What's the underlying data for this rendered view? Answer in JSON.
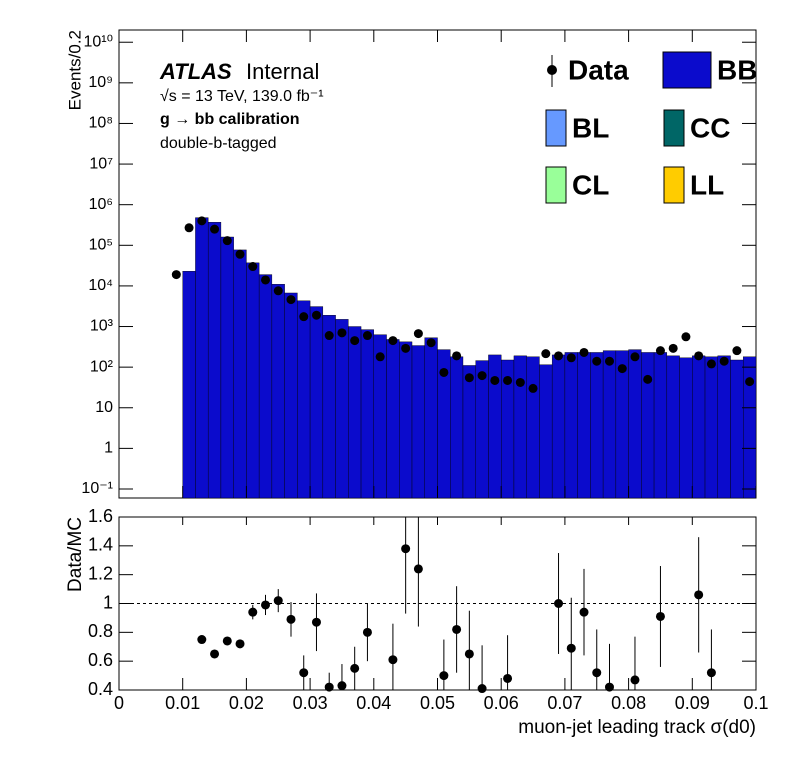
{
  "chart_data": [
    {
      "type": "histogram",
      "title": "ATLAS",
      "subtitle": "Internal",
      "annotations": [
        "√s = 13 TeV, 139.0 fb⁻¹",
        "g → bb calibration",
        "double-b-tagged"
      ],
      "ylabel": "Events/0.2",
      "log_scale": true,
      "bins": [
        0.008,
        0.01,
        0.012,
        0.014,
        0.016,
        0.018,
        0.02,
        0.022,
        0.024,
        0.026,
        0.028,
        0.03,
        0.032,
        0.034,
        0.036,
        0.038,
        0.04,
        0.042,
        0.044,
        0.046,
        0.048,
        0.05,
        0.052,
        0.054,
        0.056,
        0.058,
        0.06,
        0.062,
        0.064,
        0.066,
        0.068,
        0.07,
        0.072,
        0.074,
        0.076,
        0.078,
        0.08,
        0.082,
        0.084,
        0.086,
        0.088,
        0.09,
        0.092,
        0.094,
        0.096,
        0.098,
        0.1
      ],
      "series": [
        {
          "name": "BB",
          "color": "#0b0bcc",
          "values": [
            null,
            23000,
            480000,
            370000,
            160000,
            77000,
            37000,
            19000,
            11000,
            6700,
            4300,
            3100,
            1900,
            1500,
            1000,
            840,
            630,
            480,
            420,
            340,
            530,
            270,
            180,
            110,
            145,
            200,
            150,
            190,
            180,
            115,
            200,
            230,
            230,
            230,
            255,
            255,
            270,
            230,
            230,
            190,
            170,
            190,
            180,
            190,
            150,
            180
          ]
        }
      ],
      "data": {
        "name": "Data",
        "color": "#000000",
        "values": [
          19000,
          270000,
          400000,
          250000,
          130000,
          60000,
          30000,
          14000,
          7600,
          4600,
          1750,
          1900,
          600,
          700,
          450,
          600,
          180,
          450,
          290,
          670,
          400,
          74,
          190,
          55,
          62,
          47,
          47,
          42,
          30,
          215,
          190,
          170,
          230,
          140,
          140,
          92,
          180,
          50,
          255,
          290,
          560,
          190,
          120,
          140,
          255,
          44
        ]
      },
      "legend_only": [
        {
          "name": "BL",
          "color": "#6699ff"
        },
        {
          "name": "CC",
          "color": "#006666"
        },
        {
          "name": "CL",
          "color": "#99ff99"
        },
        {
          "name": "LL",
          "color": "#ffcc00"
        }
      ],
      "xlim": [
        0,
        0.1
      ],
      "ylim": [
        0.06,
        20000000000
      ],
      "yticks": [
        {
          "value": 0.1,
          "label": "10⁻¹"
        },
        1,
        10,
        {
          "value": 100,
          "label": "10²"
        },
        {
          "value": 1000,
          "label": "10³"
        },
        {
          "value": 10000,
          "label": "10⁴"
        },
        {
          "value": 100000,
          "label": "10⁵"
        },
        {
          "value": 1000000,
          "label": "10⁶"
        },
        {
          "value": 10000000,
          "label": "10⁷"
        },
        {
          "value": 100000000,
          "label": "10⁸"
        },
        {
          "value": 1000000000,
          "label": "10⁹"
        },
        {
          "value": 10000000000,
          "label": "10¹⁰"
        }
      ]
    },
    {
      "type": "scatter",
      "ylabel": "Data/MC",
      "xlabel": "muon-jet leading track σ(d0)",
      "color": "#000000",
      "x": [
        0.013,
        0.015,
        0.017,
        0.019,
        0.021,
        0.023,
        0.025,
        0.027,
        0.029,
        0.031,
        0.033,
        0.035,
        0.037,
        0.039,
        0.043,
        0.045,
        0.047,
        0.051,
        0.053,
        0.055,
        0.057,
        0.061,
        0.069,
        0.071,
        0.073,
        0.075,
        0.077,
        0.081,
        0.085,
        0.091,
        0.093
      ],
      "values": [
        0.75,
        0.65,
        0.74,
        0.72,
        0.94,
        0.99,
        1.02,
        0.89,
        0.52,
        0.87,
        0.42,
        0.43,
        0.55,
        0.8,
        0.61,
        1.38,
        1.24,
        0.5,
        0.82,
        0.65,
        0.41,
        0.48,
        1.0,
        0.69,
        0.94,
        0.52,
        0.42,
        0.47,
        0.91,
        1.06,
        0.52
      ],
      "errors": [
        0.02,
        0.02,
        0.02,
        0.03,
        0.05,
        0.07,
        0.08,
        0.12,
        0.12,
        0.2,
        0.1,
        0.15,
        0.15,
        0.2,
        0.25,
        0.45,
        0.4,
        0.25,
        0.3,
        0.3,
        0.3,
        0.3,
        0.35,
        0.35,
        0.3,
        0.3,
        0.3,
        0.3,
        0.35,
        0.4,
        0.3
      ],
      "reference": 1,
      "xlim": [
        0,
        0.1
      ],
      "xticks": [
        0,
        0.01,
        0.02,
        0.03,
        0.04,
        0.05,
        0.06,
        0.07,
        0.08,
        0.09,
        0.1
      ],
      "ylim": [
        0.4,
        1.6
      ],
      "yticks": [
        0.4,
        0.6,
        0.8,
        1,
        1.2,
        1.4,
        1.6
      ]
    }
  ]
}
